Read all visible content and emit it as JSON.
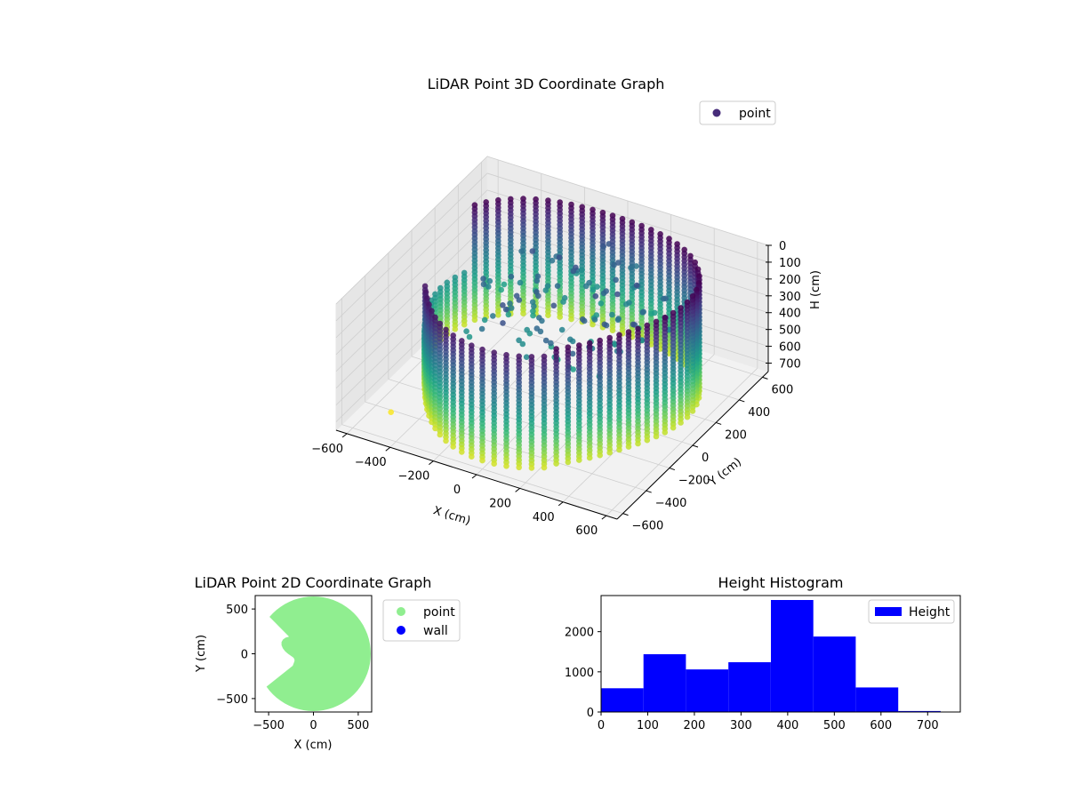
{
  "chart_data": [
    {
      "type": "scatter",
      "projection": "3d",
      "title": "LiDAR Point 3D Coordinate Graph",
      "xlabel": "X (cm)",
      "ylabel": "Y (cm)",
      "zlabel": "H (cm)",
      "xlim": [
        -650,
        650
      ],
      "ylim": [
        -650,
        650
      ],
      "zlim": [
        750,
        0
      ],
      "x_ticks": [
        -600,
        -400,
        -200,
        0,
        200,
        400,
        600
      ],
      "y_ticks": [
        -600,
        -400,
        -200,
        0,
        200,
        400,
        600
      ],
      "z_ticks": [
        0,
        100,
        200,
        300,
        400,
        500,
        600,
        700
      ],
      "grid": true,
      "legend": {
        "placement": "upper-right",
        "entries": [
          {
            "label": "point",
            "color": "#472c7a"
          }
        ]
      },
      "colormap": "viridis",
      "description_of_shape": "ring of vertical point columns around the sensor, wall radius ~560 cm, heights 0-700 cm"
    },
    {
      "type": "scatter",
      "title": "LiDAR Point 2D Coordinate Graph",
      "xlabel": "X (cm)",
      "ylabel": "Y (cm)",
      "xlim": [
        -650,
        650
      ],
      "ylim": [
        -650,
        650
      ],
      "x_ticks": [
        -500,
        0,
        500
      ],
      "y_ticks": [
        -500,
        0,
        500
      ],
      "legend": {
        "placement": "outside-right",
        "entries": [
          {
            "label": "point",
            "color": "#90ee90"
          },
          {
            "label": "wall",
            "color": "#0000ff"
          }
        ]
      }
    },
    {
      "type": "bar",
      "title": "Height Histogram",
      "bin_edges": [
        0,
        91,
        182,
        273,
        364,
        455,
        546,
        637,
        728
      ],
      "values": [
        590,
        1440,
        1060,
        1240,
        2790,
        1880,
        610,
        25
      ],
      "xlim": [
        0,
        770
      ],
      "ylim": [
        0,
        2900
      ],
      "x_ticks": [
        0,
        100,
        200,
        300,
        400,
        500,
        600,
        700
      ],
      "y_ticks": [
        0,
        1000,
        2000
      ],
      "color": "#0000ff",
      "legend": {
        "placement": "upper-right",
        "entries": [
          {
            "label": "Height",
            "color": "#0000ff"
          }
        ]
      }
    }
  ]
}
